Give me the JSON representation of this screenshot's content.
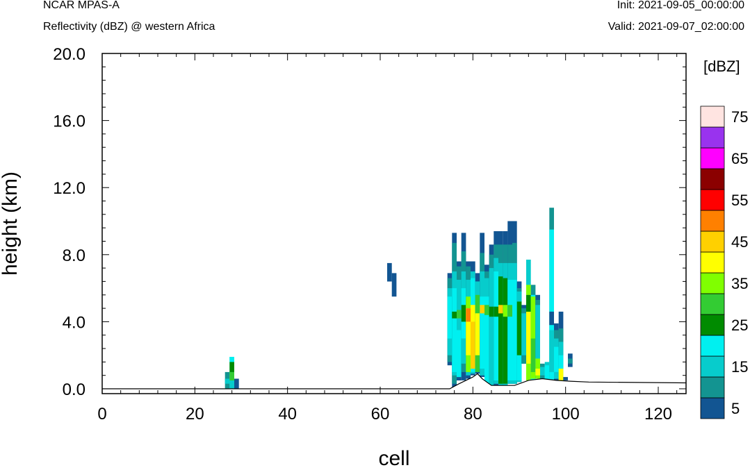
{
  "header": {
    "model": "NCAR MPAS-A",
    "field": "Reflectivity (dBZ) @ western Africa",
    "init": "Init: 2021-09-05_00:00:00",
    "valid": "Valid: 2021-09-07_02:00:00"
  },
  "chart_data": {
    "type": "heatmap",
    "xlabel": "cell",
    "ylabel": "height (km)",
    "xlim": [
      0,
      126
    ],
    "ylim": [
      -0.3,
      20
    ],
    "xticks": [
      0,
      20,
      40,
      60,
      80,
      100,
      120
    ],
    "yticks": [
      0,
      4,
      8,
      12,
      16,
      20
    ],
    "ytick_labels": [
      "0.0",
      "4.0",
      "8.0",
      "12.0",
      "16.0",
      "20.0"
    ],
    "colorbar": {
      "unit": "[dBZ]",
      "levels": [
        5,
        10,
        15,
        20,
        25,
        30,
        35,
        40,
        45,
        50,
        55,
        60,
        65,
        70,
        75
      ],
      "labels": [
        "5",
        "15",
        "25",
        "35",
        "45",
        "55",
        "65",
        "75"
      ],
      "colors": [
        "#125592",
        "#139491",
        "#07cccc",
        "#00f0f0",
        "#008b00",
        "#33cc33",
        "#80ff00",
        "#ffff00",
        "#ffd000",
        "#ff8000",
        "#ff0000",
        "#8b0000",
        "#ff00ff",
        "#9933ee",
        "#ffe4e1"
      ]
    },
    "terrain": [
      [
        0,
        0.0
      ],
      [
        75,
        0.0
      ],
      [
        77,
        0.3
      ],
      [
        80,
        0.7
      ],
      [
        81,
        0.9
      ],
      [
        82,
        0.6
      ],
      [
        84,
        0.2
      ],
      [
        87,
        0.2
      ],
      [
        89,
        0.2
      ],
      [
        92,
        0.5
      ],
      [
        95,
        0.6
      ],
      [
        98,
        0.5
      ],
      [
        101,
        0.45
      ],
      [
        105,
        0.4
      ],
      [
        126,
        0.35
      ]
    ],
    "columns": [
      {
        "x": 27,
        "cells": [
          [
            0,
            1.0,
            10
          ],
          [
            0.3,
            0.6,
            15
          ]
        ]
      },
      {
        "x": 28,
        "cells": [
          [
            0,
            1.9,
            15
          ],
          [
            0.5,
            1.0,
            30
          ],
          [
            1.0,
            1.6,
            25
          ],
          [
            1.6,
            1.9,
            20
          ]
        ]
      },
      {
        "x": 29,
        "cells": [
          [
            0,
            0.6,
            5
          ]
        ]
      },
      {
        "x": 62,
        "cells": [
          [
            6.4,
            7.5,
            5
          ]
        ]
      },
      {
        "x": 63,
        "cells": [
          [
            5.5,
            6.9,
            5
          ]
        ]
      },
      {
        "x": 75,
        "cells": [
          [
            1.4,
            6.9,
            5
          ],
          [
            1.6,
            6.6,
            10
          ],
          [
            2.0,
            6.0,
            15
          ],
          [
            3.0,
            5.5,
            20
          ]
        ]
      },
      {
        "x": 76,
        "cells": [
          [
            0.0,
            9.3,
            5
          ],
          [
            0.3,
            8.7,
            10
          ],
          [
            0.8,
            7.0,
            15
          ],
          [
            1.0,
            6.0,
            20
          ],
          [
            4.2,
            4.6,
            25
          ]
        ]
      },
      {
        "x": 77,
        "cells": [
          [
            0.5,
            7.6,
            5
          ],
          [
            0.7,
            7.3,
            10
          ],
          [
            1.0,
            6.5,
            15
          ],
          [
            4.2,
            4.7,
            30
          ],
          [
            0.7,
            3.5,
            20
          ]
        ]
      },
      {
        "x": 78,
        "cells": [
          [
            0.5,
            9.3,
            5
          ],
          [
            1.0,
            8.2,
            10
          ],
          [
            1.5,
            7.0,
            15
          ],
          [
            3.0,
            6.0,
            20
          ],
          [
            4.0,
            5.0,
            25
          ]
        ]
      },
      {
        "x": 79,
        "cells": [
          [
            0.6,
            7.6,
            5
          ],
          [
            1.0,
            7.3,
            10
          ],
          [
            0.8,
            6.5,
            15
          ],
          [
            1.0,
            5.5,
            35
          ],
          [
            2.0,
            4.8,
            40
          ],
          [
            4.0,
            4.8,
            50
          ]
        ]
      },
      {
        "x": 80,
        "cells": [
          [
            0.8,
            7.6,
            5
          ],
          [
            0.9,
            7.0,
            15
          ],
          [
            1.0,
            6.6,
            20
          ],
          [
            1.2,
            5.0,
            45
          ],
          [
            4.0,
            5.0,
            40
          ]
        ]
      },
      {
        "x": 81,
        "cells": [
          [
            0.9,
            6.9,
            5
          ],
          [
            1.0,
            6.4,
            15
          ],
          [
            1.0,
            5.6,
            30
          ],
          [
            2.0,
            4.5,
            40
          ]
        ]
      },
      {
        "x": 82,
        "cells": [
          [
            0.7,
            9.3,
            5
          ],
          [
            0.8,
            8.1,
            10
          ],
          [
            0.8,
            7.0,
            15
          ],
          [
            1.2,
            5.5,
            20
          ],
          [
            4.5,
            5.0,
            45
          ]
        ]
      },
      {
        "x": 83,
        "cells": [
          [
            0.2,
            7.4,
            5
          ],
          [
            0.3,
            7.0,
            10
          ],
          [
            0.3,
            6.6,
            15
          ],
          [
            0.3,
            5.5,
            20
          ],
          [
            4.4,
            5.0,
            30
          ]
        ]
      },
      {
        "x": 84,
        "cells": [
          [
            0.2,
            8.6,
            5
          ],
          [
            0.2,
            8.0,
            10
          ],
          [
            0.2,
            7.2,
            15
          ],
          [
            4.3,
            4.9,
            25
          ]
        ]
      },
      {
        "x": 85,
        "cells": [
          [
            0.2,
            9.4,
            5
          ],
          [
            0.3,
            8.6,
            10
          ],
          [
            0.3,
            7.8,
            15
          ],
          [
            0.5,
            7.0,
            20
          ],
          [
            4.3,
            4.9,
            25
          ]
        ]
      },
      {
        "x": 86,
        "cells": [
          [
            0.2,
            9.4,
            5
          ],
          [
            0.2,
            8.6,
            10
          ],
          [
            0.2,
            7.5,
            15
          ],
          [
            0.3,
            6.7,
            25
          ],
          [
            4.5,
            5.0,
            45
          ]
        ]
      },
      {
        "x": 87,
        "cells": [
          [
            0.2,
            9.4,
            5
          ],
          [
            0.2,
            8.6,
            10
          ],
          [
            0.2,
            7.5,
            15
          ],
          [
            0.3,
            6.6,
            25
          ],
          [
            4.3,
            5.0,
            35
          ]
        ]
      },
      {
        "x": 88,
        "cells": [
          [
            0.3,
            10.0,
            5
          ],
          [
            0.3,
            8.6,
            10
          ],
          [
            0.3,
            7.5,
            15
          ],
          [
            0.5,
            6.5,
            20
          ],
          [
            4.3,
            5.0,
            30
          ]
        ]
      },
      {
        "x": 89,
        "cells": [
          [
            0.3,
            10.0,
            5
          ],
          [
            0.3,
            8.7,
            10
          ],
          [
            0.3,
            7.5,
            15
          ],
          [
            0.5,
            6.5,
            20
          ]
        ]
      },
      {
        "x": 90,
        "cells": [
          [
            0.4,
            6.4,
            5
          ],
          [
            0.4,
            6.0,
            10
          ],
          [
            0.4,
            5.8,
            15
          ],
          [
            0.5,
            5.2,
            20
          ],
          [
            2.0,
            5.2,
            25
          ]
        ]
      },
      {
        "x": 91,
        "cells": [
          [
            1.5,
            5.0,
            5
          ],
          [
            1.5,
            4.8,
            10
          ],
          [
            2.0,
            4.5,
            15
          ]
        ]
      },
      {
        "x": 92,
        "cells": [
          [
            0.5,
            7.7,
            15
          ],
          [
            0.5,
            6.2,
            35
          ],
          [
            1.5,
            5.6,
            40
          ],
          [
            4.6,
            5.6,
            25
          ]
        ]
      },
      {
        "x": 93,
        "cells": [
          [
            0.5,
            6.2,
            10
          ],
          [
            0.5,
            5.6,
            20
          ],
          [
            0.6,
            5.5,
            35
          ],
          [
            1.0,
            3.0,
            30
          ]
        ]
      },
      {
        "x": 94,
        "cells": [
          [
            0.6,
            5.6,
            5
          ],
          [
            0.6,
            5.3,
            10
          ],
          [
            0.6,
            5.0,
            15
          ],
          [
            0.6,
            1.8,
            35
          ],
          [
            0.8,
            1.2,
            40
          ]
        ]
      },
      {
        "x": 95,
        "cells": [
          [
            0.6,
            1.5,
            10
          ],
          [
            0.8,
            1.3,
            15
          ]
        ]
      },
      {
        "x": 96,
        "cells": [
          [
            0.5,
            1.6,
            15
          ],
          [
            0.6,
            1.4,
            20
          ]
        ]
      },
      {
        "x": 97,
        "cells": [
          [
            0.5,
            10.8,
            10
          ],
          [
            0.5,
            9.5,
            20
          ],
          [
            1.0,
            3.5,
            15
          ],
          [
            3.8,
            4.6,
            5
          ]
        ]
      },
      {
        "x": 98,
        "cells": [
          [
            0.5,
            3.9,
            5
          ],
          [
            0.6,
            3.5,
            10
          ],
          [
            0.6,
            3.0,
            15
          ],
          [
            1.0,
            2.5,
            20
          ]
        ]
      },
      {
        "x": 99,
        "cells": [
          [
            0.5,
            4.6,
            5
          ],
          [
            0.5,
            3.6,
            10
          ],
          [
            0.5,
            2.8,
            15
          ],
          [
            0.5,
            2.0,
            20
          ],
          [
            0.5,
            1.2,
            40
          ]
        ]
      },
      {
        "x": 100,
        "cells": [
          [
            0.5,
            0.7,
            5
          ]
        ]
      },
      {
        "x": 101,
        "cells": [
          [
            1.3,
            2.1,
            5
          ],
          [
            1.5,
            1.8,
            10
          ]
        ]
      }
    ]
  }
}
